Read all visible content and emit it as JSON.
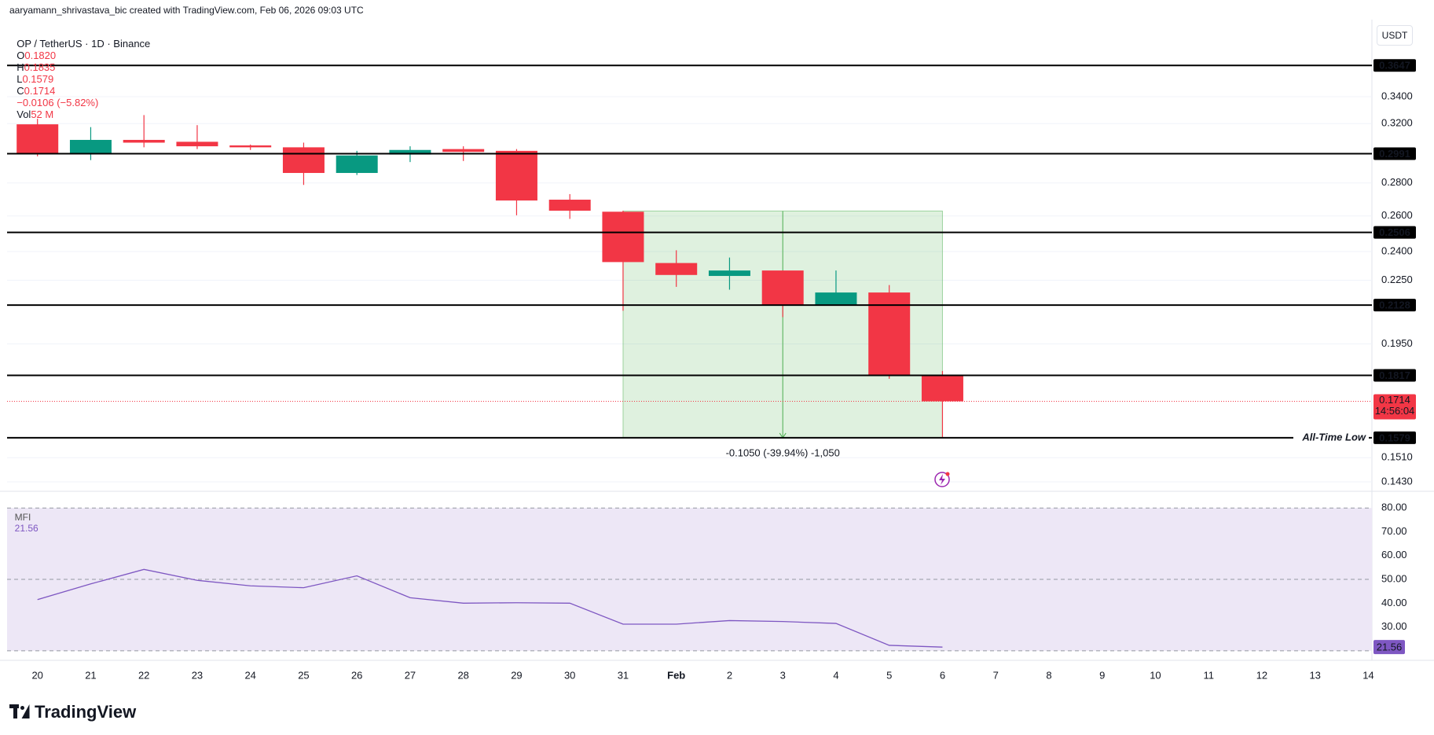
{
  "header": {
    "credit": "aaryamann_shrivastava_bic created with TradingView.com, Feb 06, 2026 09:03 UTC",
    "symbol": "OP / TetherUS · 1D · Binance",
    "ohlc": [
      {
        "key": "O",
        "value": "0.1820"
      },
      {
        "key": "H",
        "value": "0.1835"
      },
      {
        "key": "L",
        "value": "0.1579"
      },
      {
        "key": "C",
        "value": "0.1714"
      }
    ],
    "change": "−0.0106 (−5.82%)",
    "volume_key": "Vol",
    "volume": "52 M",
    "currency": "USDT",
    "brand": "TradingView"
  },
  "chart_data": [
    {
      "type": "candlestick",
      "categories": [
        "20",
        "21",
        "22",
        "23",
        "24",
        "25",
        "26",
        "27",
        "28",
        "29",
        "30",
        "31",
        "Feb",
        "2",
        "3",
        "4",
        "5",
        "6",
        "7",
        "8",
        "9",
        "10",
        "11",
        "12",
        "13",
        "14"
      ],
      "open": [
        0.3195,
        0.2991,
        0.3085,
        0.3072,
        0.3047,
        0.3034,
        0.2864,
        0.2985,
        0.3022,
        0.301,
        0.2697,
        0.2625,
        0.2339,
        0.2272,
        0.23,
        0.2128,
        0.2189,
        0.182,
        null,
        null,
        null,
        null,
        null,
        null,
        null,
        null
      ],
      "high": [
        0.3235,
        0.3175,
        0.3262,
        0.3189,
        0.3053,
        0.3066,
        0.301,
        0.3041,
        0.3041,
        0.3022,
        0.2731,
        0.2631,
        0.2407,
        0.2368,
        0.23,
        0.23,
        0.2226,
        0.1835,
        null,
        null,
        null,
        null,
        null,
        null,
        null,
        null
      ],
      "low": [
        0.2973,
        0.2948,
        0.3034,
        0.3022,
        0.3016,
        0.2788,
        0.2851,
        0.2935,
        0.2942,
        0.2604,
        0.2583,
        0.2101,
        0.2217,
        0.2203,
        0.2071,
        0.2128,
        0.1803,
        0.1579,
        null,
        null,
        null,
        null,
        null,
        null,
        null,
        null
      ],
      "close": [
        0.2991,
        0.3085,
        0.3066,
        0.3041,
        0.3034,
        0.2864,
        0.2979,
        0.3016,
        0.3003,
        0.2692,
        0.2631,
        0.2344,
        0.2277,
        0.23,
        0.2127,
        0.2189,
        0.1818,
        0.1714,
        null,
        null,
        null,
        null,
        null,
        null,
        null,
        null
      ],
      "up_color": "#089981",
      "down_color": "#f23645",
      "log_scale": true,
      "ylim": [
        0.14,
        0.4
      ],
      "grid": true,
      "yticks": [
        {
          "value": 0.34,
          "label": "0.3400"
        },
        {
          "value": 0.32,
          "label": "0.3200"
        },
        {
          "value": 0.28,
          "label": "0.2800"
        },
        {
          "value": 0.26,
          "label": "0.2600"
        },
        {
          "value": 0.24,
          "label": "0.2400"
        },
        {
          "value": 0.225,
          "label": "0.2250"
        },
        {
          "value": 0.195,
          "label": "0.1950"
        },
        {
          "value": 0.151,
          "label": "0.1510"
        },
        {
          "value": 0.143,
          "label": "0.1430"
        }
      ],
      "levels": [
        {
          "value": 0.3647
        },
        {
          "value": 0.2991
        },
        {
          "value": 0.2506
        },
        {
          "value": 0.2128
        },
        {
          "value": 0.1817
        },
        {
          "value": 0.1579,
          "note": "All-Time Low"
        }
      ],
      "level_color": "#000000",
      "last_price": 0.1714,
      "countdown": "14:56:04",
      "measure": {
        "from": 0.2629,
        "to": 0.1579,
        "x": [
          "31",
          "6"
        ],
        "label": "-0.1050 (-39.94%) -1,050",
        "color": "#4caf50"
      }
    },
    {
      "type": "line",
      "series": [
        {
          "name": "MFI",
          "color": "#7e57c2",
          "values": [
            41.5,
            48.1,
            54.2,
            49.6,
            47.3,
            46.5,
            51.5,
            42.3,
            40.0,
            40.2,
            40.0,
            31.2,
            31.2,
            32.7,
            32.3,
            31.5,
            22.3,
            21.56,
            null,
            null,
            null,
            null,
            null,
            null,
            null,
            null
          ]
        }
      ],
      "ylim": [
        16,
        87
      ],
      "yticks": [
        {
          "value": 80,
          "label": "80.00"
        },
        {
          "value": 70,
          "label": "70.00"
        },
        {
          "value": 60,
          "label": "60.00"
        },
        {
          "value": 50,
          "label": "50.00"
        },
        {
          "value": 40,
          "label": "40.00"
        },
        {
          "value": 30,
          "label": "30.00"
        }
      ],
      "band": [
        20,
        80
      ],
      "dashed_levels": [
        80,
        50,
        20
      ],
      "band_color": "#ede7f6"
    }
  ]
}
